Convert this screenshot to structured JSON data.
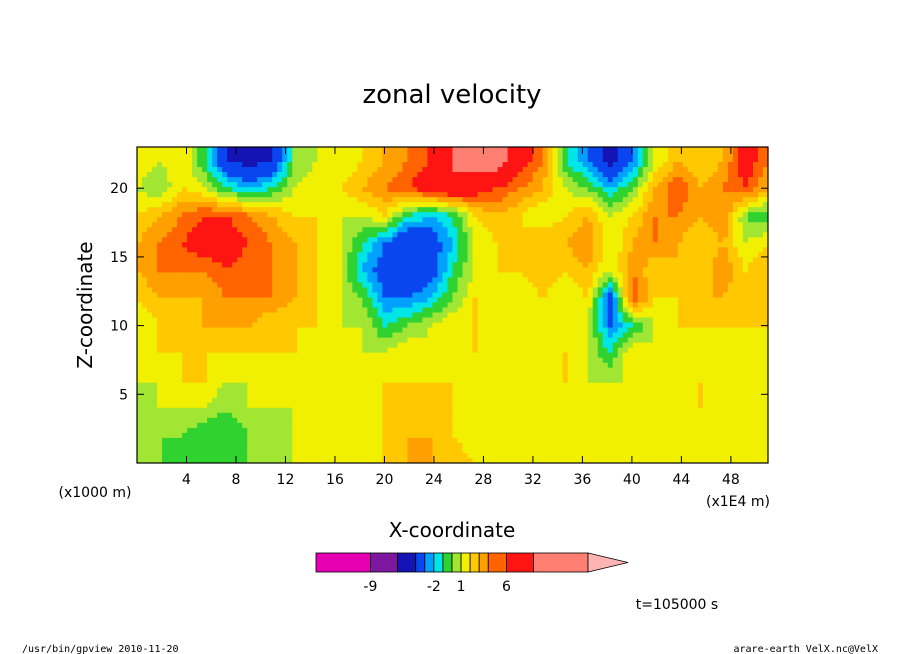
{
  "chart_data": {
    "type": "heatmap",
    "title": "zonal velocity",
    "xlabel": "X-coordinate",
    "ylabel": "Z-coordinate",
    "y_units": "(x1000 m)",
    "x_units": "(x1E4 m)",
    "x_ticks": [
      4,
      8,
      12,
      16,
      20,
      24,
      28,
      32,
      36,
      40,
      44,
      48
    ],
    "y_ticks": [
      5,
      10,
      15,
      20
    ],
    "xlim": [
      0,
      51
    ],
    "ylim": [
      0,
      23
    ],
    "levels": [
      -15,
      -9,
      -6,
      -4,
      -3,
      -2,
      -1,
      0,
      1,
      2,
      3,
      4,
      6,
      9,
      15
    ],
    "colorbar_labels": [
      "-9",
      "-2",
      "1",
      "6"
    ],
    "colorbar_colors": [
      "#e600b4",
      "#7d17a0",
      "#1414b4",
      "#0a46f0",
      "#00a0ff",
      "#00e6e6",
      "#30d230",
      "#a0e632",
      "#f0f000",
      "#ffc800",
      "#ffa000",
      "#ff6400",
      "#ff1414",
      "#ff8072",
      "#ffb4b4"
    ],
    "time_label": "t=105000 s",
    "field_rows": [
      "22,1,00,1,-2,-6,-7,-6,-1,0,0,1,2,3,4,6,7,7,5,3,-2,-4,-7,-4,0,2,1,2,5,3",
      "20,0,-1,1,0,-2,-3,-2,0,1,1,2,3,4,5,6,5,4,3,2,0,-1,-3,-1,2,4,2,3,4,2",
      "18,1,2,3,4,4,3,2,1,1,0,0,1,-2,-3,-2,1,2,1,0,1,2,0,1,3,3,2,3,-1,-2",
      "16,2,3,4,5,5,4,3,2,1,0,-2,-4,-6,-5,-3,0,1,1,2,2,3,0,2,3,2,1,2,0,1",
      "14,2,3,3,3,4,3,3,2,1,0,-3,-5,-6,-5,-2,0,1,1,2,1,2,0,3,1,2,1,3,1,2",
      "12,1,2,2,2,3,3,3,2,1,0,-1,-4,-4,-3,-1,1,1,0,1,0,1,-5,4,1,1,2,2,1,2",
      "10,0,1,1,2,2,2,1,1,1,0,0,-2,-1,0,1,1,0,0,1,0,0,-4,-2,0,1,1,1,1,1",
      "8,0,1,1,1,1,1,1,1,0,0,0,0,1,0,0,1,0,0,1,1,0,-2,1,0,1,0,1,0,1",
      "6,0,0,1,1,0,0,1,0,0,0,0,1,1,1,1,0,0,0,0,1,0,0,0,0,0,1,0,1,0",
      "4,-1,0,0,0,-1,0,0,0,0,0,0,1,1,1,1,0,0,0,0,0,0,0,0,0,0,1,0,0,0",
      "2,-1,-1,-1,-2,-2,-1,-1,0,0,0,0,1,2,2,1,0,0,0,0,0,0,0,0,0,0,0,0,0,0",
      "0,-1,-1,-2,-2,-2,-1,-1,0,0,0,0,1,2,2,2,1,0,0,0,0,0,0,0,0,0,0,0,0,0"
    ]
  },
  "footer": {
    "left": "/usr/bin/gpview   2010-11-20",
    "right": "arare-earth_VelX.nc@VelX"
  }
}
